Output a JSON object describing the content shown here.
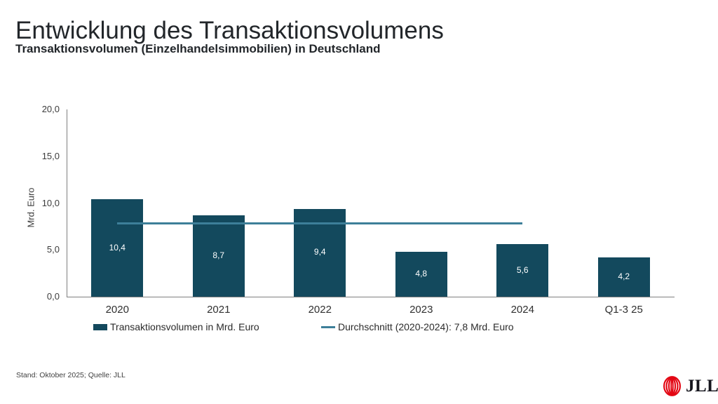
{
  "header": {
    "title": "Entwicklung des Transaktionsvolumens",
    "subtitle": "Transaktionsvolumen (Einzelhandelsimmobilien) in Deutschland"
  },
  "chart_data": {
    "type": "bar",
    "title": "Entwicklung des Transaktionsvolumens",
    "subtitle": "Transaktionsvolumen (Einzelhandelsimmobilien) in Deutschland",
    "categories": [
      "2020",
      "2021",
      "2022",
      "2023",
      "2024",
      "Q1-3 25"
    ],
    "values": [
      10.4,
      8.7,
      9.4,
      4.8,
      5.6,
      4.2
    ],
    "value_labels": [
      "10,4",
      "8,7",
      "9,4",
      "4,8",
      "5,6",
      "4,2"
    ],
    "xlabel": "",
    "ylabel": "Mrd. Euro",
    "ylim": [
      0,
      20
    ],
    "ytick_values": [
      0,
      5,
      10,
      15,
      20
    ],
    "ytick_labels": [
      "0,0",
      "5,0",
      "10,0",
      "15,0",
      "20,0"
    ],
    "grid": false,
    "legend_position": "bottom",
    "average_line": {
      "value": 7.8,
      "from_category_index": 0,
      "to_category_index": 4,
      "label": "Durchschnitt (2020-2024): 7,8 Mrd. Euro"
    },
    "legend": [
      {
        "label": "Transaktionsvolumen in Mrd. Euro",
        "type": "bar"
      },
      {
        "label": "Durchschnitt (2020-2024): 7,8 Mrd. Euro",
        "type": "line"
      }
    ],
    "colors": {
      "bar": "#13495d",
      "average_line": "#3d7f99",
      "value_label": "#ffffff",
      "axis": "#7f7f7f"
    }
  },
  "footer": {
    "note": "Stand: Oktober 2025; Quelle: JLL",
    "logo_text": "JLL",
    "logo_mark_color": "#e30613"
  }
}
